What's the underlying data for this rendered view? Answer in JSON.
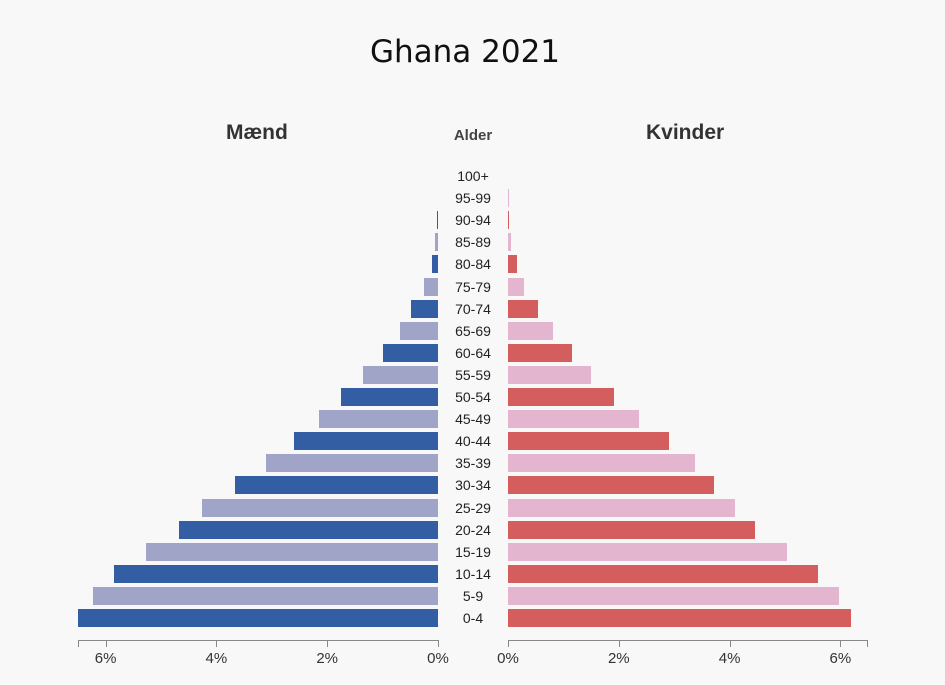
{
  "chart_data": {
    "type": "bar",
    "title": "Ghana 2021",
    "left_label": "Mænd",
    "right_label": "Kvinder",
    "center_label": "Alder",
    "categories": [
      "100+",
      "95-99",
      "90-94",
      "85-89",
      "80-84",
      "75-79",
      "70-74",
      "65-69",
      "60-64",
      "55-59",
      "50-54",
      "45-49",
      "40-44",
      "35-39",
      "30-34",
      "25-29",
      "20-24",
      "15-19",
      "10-14",
      "5-9",
      "0-4"
    ],
    "series": [
      {
        "name": "Mænd",
        "values": [
          0.0,
          0.0,
          0.01,
          0.05,
          0.11,
          0.25,
          0.48,
          0.68,
          0.99,
          1.36,
          1.75,
          2.15,
          2.6,
          3.1,
          3.66,
          4.26,
          4.67,
          5.27,
          5.85,
          6.23,
          6.5
        ]
      },
      {
        "name": "Kvinder",
        "values": [
          0.0,
          0.01,
          0.01,
          0.06,
          0.16,
          0.29,
          0.54,
          0.81,
          1.16,
          1.49,
          1.92,
          2.36,
          2.9,
          3.38,
          3.72,
          4.1,
          4.46,
          5.03,
          5.6,
          5.98,
          6.2
        ]
      }
    ],
    "xlim": [
      0,
      6.5
    ],
    "xticks": [
      "6%",
      "4%",
      "2%",
      "0%"
    ],
    "xticks_right": [
      "0%",
      "2%",
      "4%",
      "6%"
    ],
    "colors": {
      "male_dark": "#345ea3",
      "male_light": "#a0a4c7",
      "female_dark": "#d45e5e",
      "female_light": "#e4b5cf"
    }
  }
}
